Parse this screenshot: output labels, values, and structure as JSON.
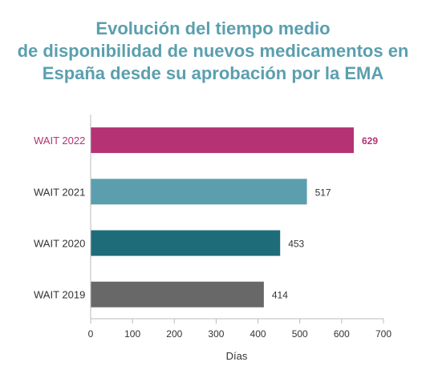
{
  "title_lines": [
    "Evolución del tiempo medio",
    "de disponibilidad de nuevos medicamentos en",
    "España desde su aprobación por la EMA"
  ],
  "chart_data": {
    "type": "bar",
    "orientation": "horizontal",
    "categories": [
      "WAIT 2022",
      "WAIT 2021",
      "WAIT 2020",
      "WAIT 2019"
    ],
    "values": [
      629,
      517,
      453,
      414
    ],
    "data_labels": [
      "629",
      "517",
      "453",
      "414"
    ],
    "colors": [
      "#b53274",
      "#5b9fae",
      "#1e6c7a",
      "#686868"
    ],
    "highlight_index": 0,
    "xlabel": "Días",
    "ylabel": "",
    "xlim": [
      0,
      700
    ],
    "xticks": [
      0,
      100,
      200,
      300,
      400,
      500,
      600,
      700
    ],
    "grid": false
  }
}
